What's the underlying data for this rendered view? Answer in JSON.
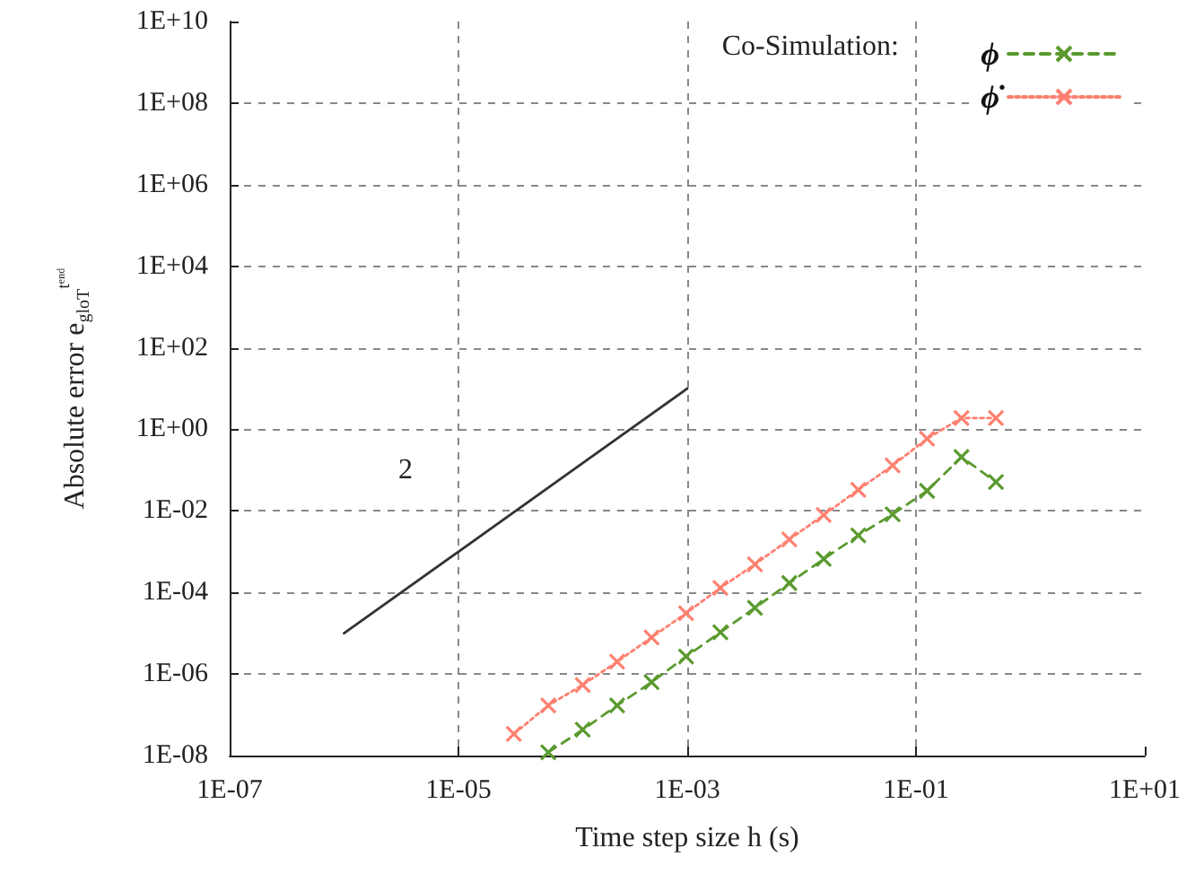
{
  "chart_data": {
    "type": "line",
    "xlabel": "Time step size h (s)",
    "ylabel": "Absolute error e$_{gloT}$$^{tᵉⁿᵈ}$",
    "legend_title": "Co-Simulation:",
    "log": "xy",
    "grid": true,
    "legend": "top right",
    "xlim": [
      1e-07,
      10
    ],
    "ylim": [
      1e-08,
      10000000000.0
    ],
    "xticks": [
      {
        "value": 1e-07,
        "label": "1E-07"
      },
      {
        "value": 1e-05,
        "label": "1E-05"
      },
      {
        "value": 0.001,
        "label": "1E-03"
      },
      {
        "value": 0.1,
        "label": "1E-01"
      },
      {
        "value": 10,
        "label": "1E+01"
      }
    ],
    "yticks": [
      {
        "value": 1e-08,
        "label": "1E-08"
      },
      {
        "value": 1e-06,
        "label": "1E-06"
      },
      {
        "value": 0.0001,
        "label": "1E-04"
      },
      {
        "value": 0.01,
        "label": "1E-02"
      },
      {
        "value": 1,
        "label": "1E+00"
      },
      {
        "value": 100,
        "label": "1E+02"
      },
      {
        "value": 10000,
        "label": "1E+04"
      },
      {
        "value": 1000000,
        "label": "1E+06"
      },
      {
        "value": 100000000,
        "label": "1E+08"
      },
      {
        "value": 10000000000,
        "label": "1E+10"
      }
    ],
    "annotations": [
      "2"
    ],
    "series": [
      {
        "name": "ϕ",
        "color": "#5a9a2e",
        "marker": "cross",
        "line_style": "dashed",
        "x": [
          6.1e-05,
          0.000122,
          0.000244,
          0.000488,
          0.000977,
          0.00195,
          0.00391,
          0.00781,
          0.0156,
          0.0313,
          0.0625,
          0.125,
          0.25,
          0.5
        ],
        "values": [
          1.2e-08,
          4.3e-08,
          1.7e-07,
          6.3e-07,
          2.7e-06,
          1.05e-05,
          4.2e-05,
          0.00017,
          0.00066,
          0.0025,
          0.0083,
          0.031,
          0.21,
          0.051
        ]
      },
      {
        "name": "ϕ̇",
        "color": "#ff8070",
        "marker": "cross",
        "line_style": "dotted",
        "x": [
          3.05e-05,
          6.1e-05,
          0.000122,
          0.000244,
          0.000488,
          0.000977,
          0.00195,
          0.00391,
          0.00781,
          0.0156,
          0.0313,
          0.0625,
          0.125,
          0.25,
          0.5
        ],
        "values": [
          3.4e-08,
          1.7e-07,
          5.4e-07,
          2e-06,
          7.9e-06,
          3.1e-05,
          0.00013,
          0.00049,
          0.002,
          0.0079,
          0.033,
          0.13,
          0.59,
          1.9,
          1.9
        ]
      },
      {
        "color": "#333333",
        "marker": "none",
        "line_style": "solid",
        "x": [
          1e-06,
          0.001
        ],
        "values": [
          1e-05,
          10
        ]
      }
    ]
  }
}
